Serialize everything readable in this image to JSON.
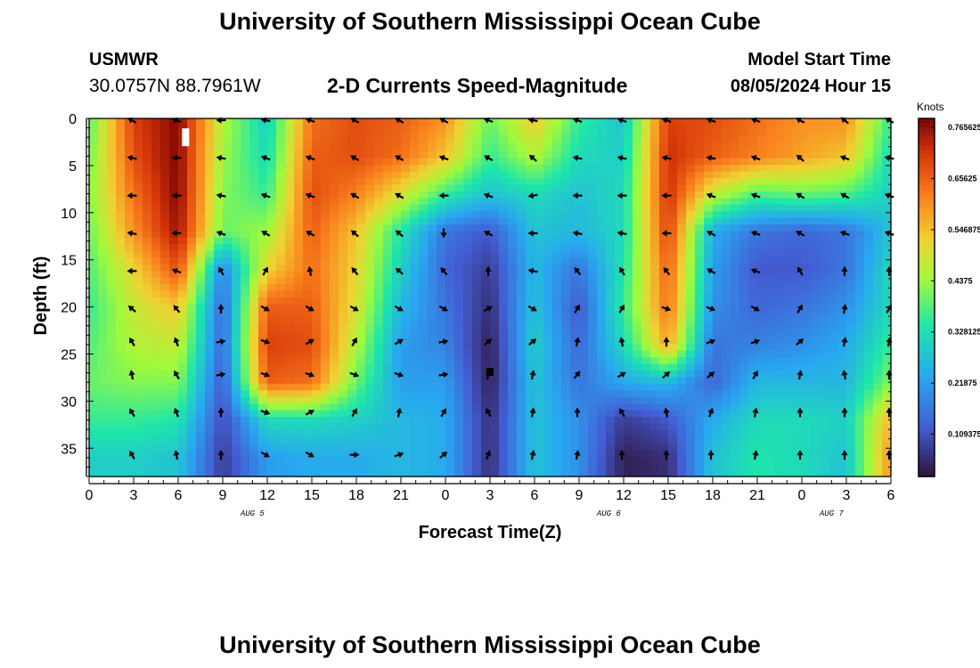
{
  "header": {
    "title": "University of Southern Mississippi Ocean Cube",
    "station": "USMWR",
    "coords": "30.0757N  88.7961W",
    "subtitle": "2-D Currents Speed-Magnitude",
    "model_start_label": "Model Start Time",
    "model_start_value": "08/05/2024 Hour 15"
  },
  "footer": {
    "title": "University of Southern Mississippi Ocean Cube"
  },
  "chart_data": {
    "type": "heatmap",
    "title": "2-D Currents Speed-Magnitude",
    "xlabel": "Forecast Time(Z)",
    "ylabel": "Depth (ft)",
    "x_range_hours": [
      0,
      54
    ],
    "x_ticks": [
      "0",
      "3",
      "6",
      "9",
      "12",
      "15",
      "18",
      "21",
      "0",
      "3",
      "6",
      "9",
      "12",
      "15",
      "18",
      "21",
      "0",
      "3",
      "6"
    ],
    "date_labels": [
      {
        "hour": 11,
        "label": "AUG 5"
      },
      {
        "hour": 35,
        "label": "AUG 6"
      },
      {
        "hour": 50,
        "label": "AUG 7"
      }
    ],
    "y_range_ft": [
      0,
      38
    ],
    "y_ticks": [
      0,
      5,
      10,
      15,
      20,
      25,
      30,
      35
    ],
    "colorbar": {
      "unit": "Knots",
      "min": 0.0,
      "max": 0.765625,
      "tick_labels": [
        "0.765625",
        "0.65625",
        "0.546875",
        "0.4375",
        "0.328125",
        "0.21875",
        "0.109375"
      ],
      "tick_values": [
        0.765625,
        0.65625,
        0.546875,
        0.4375,
        0.328125,
        0.21875,
        0.109375
      ]
    },
    "speed_field_knots": {
      "hours": [
        0,
        3,
        6,
        9,
        12,
        15,
        18,
        21,
        24,
        27,
        30,
        33,
        36,
        39,
        42,
        45,
        48,
        51,
        54
      ],
      "depths_ft": [
        0,
        4,
        8,
        12,
        16,
        20,
        24,
        28,
        32,
        36
      ],
      "values": [
        [
          0.36,
          0.68,
          0.76,
          0.44,
          0.28,
          0.62,
          0.66,
          0.64,
          0.58,
          0.38,
          0.52,
          0.34,
          0.26,
          0.68,
          0.66,
          0.62,
          0.58,
          0.58,
          0.34
        ],
        [
          0.38,
          0.66,
          0.76,
          0.42,
          0.3,
          0.64,
          0.66,
          0.62,
          0.52,
          0.34,
          0.44,
          0.3,
          0.28,
          0.7,
          0.64,
          0.6,
          0.56,
          0.52,
          0.3
        ],
        [
          0.4,
          0.62,
          0.76,
          0.4,
          0.34,
          0.66,
          0.6,
          0.48,
          0.34,
          0.26,
          0.3,
          0.26,
          0.3,
          0.7,
          0.46,
          0.36,
          0.38,
          0.36,
          0.28
        ],
        [
          0.38,
          0.58,
          0.74,
          0.38,
          0.42,
          0.64,
          0.52,
          0.32,
          0.14,
          0.1,
          0.26,
          0.24,
          0.3,
          0.68,
          0.22,
          0.14,
          0.12,
          0.14,
          0.26
        ],
        [
          0.36,
          0.5,
          0.66,
          0.16,
          0.5,
          0.62,
          0.5,
          0.28,
          0.12,
          0.06,
          0.24,
          0.14,
          0.32,
          0.64,
          0.2,
          0.1,
          0.1,
          0.14,
          0.3
        ],
        [
          0.34,
          0.46,
          0.52,
          0.12,
          0.64,
          0.64,
          0.48,
          0.24,
          0.14,
          0.04,
          0.26,
          0.1,
          0.34,
          0.62,
          0.18,
          0.12,
          0.14,
          0.18,
          0.3
        ],
        [
          0.36,
          0.44,
          0.46,
          0.12,
          0.68,
          0.66,
          0.44,
          0.2,
          0.16,
          0.02,
          0.28,
          0.12,
          0.3,
          0.56,
          0.14,
          0.16,
          0.18,
          0.22,
          0.34
        ],
        [
          0.38,
          0.4,
          0.4,
          0.1,
          0.64,
          0.62,
          0.38,
          0.2,
          0.2,
          0.02,
          0.26,
          0.14,
          0.22,
          0.24,
          0.12,
          0.24,
          0.24,
          0.24,
          0.4
        ],
        [
          0.34,
          0.34,
          0.32,
          0.08,
          0.3,
          0.3,
          0.28,
          0.24,
          0.22,
          0.04,
          0.26,
          0.18,
          0.06,
          0.1,
          0.22,
          0.3,
          0.3,
          0.28,
          0.54
        ],
        [
          0.28,
          0.28,
          0.26,
          0.06,
          0.2,
          0.22,
          0.22,
          0.24,
          0.22,
          0.04,
          0.26,
          0.18,
          0.02,
          0.04,
          0.26,
          0.32,
          0.3,
          0.26,
          0.58
        ]
      ]
    },
    "vector_grid": {
      "hours": [
        3,
        6,
        9,
        12,
        15,
        18,
        21,
        24,
        27,
        30,
        33,
        36,
        39,
        42,
        45,
        48,
        51,
        54
      ],
      "depths_ft": [
        0,
        4,
        8,
        12,
        16,
        20,
        23.5,
        27,
        31,
        35.5
      ],
      "angle_note": "direction in degrees, screen convention (0 = east, 90 = south)",
      "angles_deg": [
        [
          210,
          200,
          180,
          190,
          200,
          210,
          210,
          210,
          200,
          190,
          200,
          200,
          200,
          200,
          200,
          210,
          220,
          210
        ],
        [
          190,
          180,
          190,
          200,
          200,
          210,
          210,
          200,
          210,
          220,
          190,
          190,
          190,
          190,
          200,
          220,
          200,
          190
        ],
        [
          180,
          180,
          190,
          200,
          200,
          210,
          210,
          180,
          200,
          170,
          180,
          180,
          180,
          200,
          200,
          210,
          210,
          200
        ],
        [
          190,
          180,
          200,
          210,
          210,
          220,
          220,
          90,
          210,
          180,
          190,
          190,
          180,
          210,
          200,
          210,
          200,
          200
        ],
        [
          180,
          200,
          240,
          300,
          260,
          230,
          220,
          230,
          270,
          190,
          230,
          240,
          230,
          210,
          200,
          240,
          270,
          270
        ],
        [
          220,
          230,
          270,
          30,
          30,
          30,
          30,
          30,
          330,
          30,
          300,
          300,
          20,
          20,
          30,
          300,
          280,
          300
        ],
        [
          240,
          250,
          350,
          20,
          330,
          300,
          330,
          350,
          320,
          320,
          280,
          260,
          270,
          340,
          340,
          320,
          280,
          280
        ],
        [
          260,
          240,
          350,
          20,
          20,
          20,
          20,
          350,
          280,
          280,
          310,
          330,
          320,
          320,
          300,
          280,
          260,
          270
        ],
        [
          240,
          250,
          270,
          20,
          330,
          300,
          280,
          300,
          240,
          280,
          270,
          240,
          260,
          290,
          280,
          270,
          270,
          270
        ],
        [
          240,
          260,
          270,
          30,
          30,
          0,
          340,
          320,
          290,
          280,
          280,
          270,
          270,
          270,
          280,
          270,
          270,
          270
        ]
      ]
    },
    "markers": [
      {
        "type": "rect",
        "hour": 6.5,
        "depth": 2.0,
        "color": "#ffffff"
      },
      {
        "type": "rect",
        "hour": 27.0,
        "depth": 26.9,
        "color": "#000000"
      }
    ]
  }
}
